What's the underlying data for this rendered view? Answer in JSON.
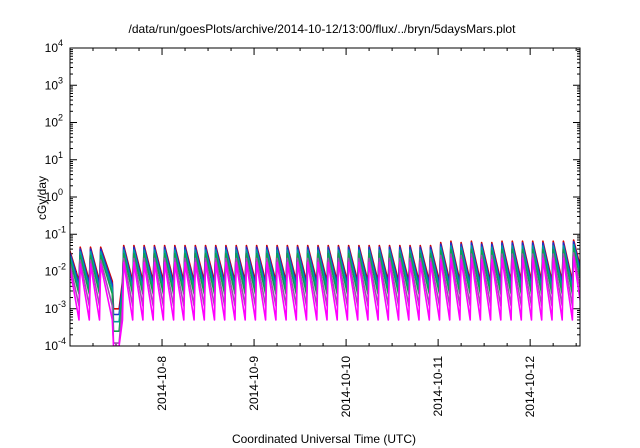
{
  "chart_data": {
    "type": "line",
    "title": "/data/run/goesPlots/archive/2014-10-12/13:00/flux/../bryn/5daysMars.plot",
    "xlabel": "Coordinated Universal Time (UTC)",
    "ylabel": "cGy/day",
    "y_scale": "log",
    "ylim": [
      0.0001,
      10000
    ],
    "xlim": [
      "2014-10-07T00:00",
      "2014-10-12T13:00"
    ],
    "x_ticks": [
      "2014-10-8",
      "2014-10-9",
      "2014-10-10",
      "2014-10-11",
      "2014-10-12"
    ],
    "y_ticks": [
      {
        "mant": "10",
        "exp": "-4"
      },
      {
        "mant": "10",
        "exp": "-3"
      },
      {
        "mant": "10",
        "exp": "-2"
      },
      {
        "mant": "10",
        "exp": "-1"
      },
      {
        "mant": "10",
        "exp": "0"
      },
      {
        "mant": "10",
        "exp": "1"
      },
      {
        "mant": "10",
        "exp": "2"
      },
      {
        "mant": "10",
        "exp": "3"
      },
      {
        "mant": "10",
        "exp": "4"
      }
    ],
    "grid": false,
    "legend": "none",
    "peak_times": [
      "2014-10-07T00:00",
      "2014-10-07T02:40",
      "2014-10-07T05:20",
      "2014-10-07T08:00",
      "2014-10-07T11:20",
      "2014-10-07T14:00",
      "2014-10-07T16:40",
      "2014-10-07T19:20",
      "2014-10-07T22:00",
      "2014-10-08T00:40",
      "2014-10-08T03:20",
      "2014-10-08T06:00",
      "2014-10-08T08:40",
      "2014-10-08T11:20",
      "2014-10-08T14:00",
      "2014-10-08T16:40",
      "2014-10-08T19:20",
      "2014-10-08T22:00",
      "2014-10-09T00:40",
      "2014-10-09T03:20",
      "2014-10-09T06:00",
      "2014-10-09T08:40",
      "2014-10-09T11:20",
      "2014-10-09T14:00",
      "2014-10-09T16:40",
      "2014-10-09T19:20",
      "2014-10-09T22:00",
      "2014-10-10T00:40",
      "2014-10-10T03:20",
      "2014-10-10T06:00",
      "2014-10-10T08:40",
      "2014-10-10T11:20",
      "2014-10-10T14:00",
      "2014-10-10T16:40",
      "2014-10-10T19:20",
      "2014-10-10T22:00",
      "2014-10-11T00:40",
      "2014-10-11T03:20",
      "2014-10-11T06:00",
      "2014-10-11T08:40",
      "2014-10-11T11:20",
      "2014-10-11T14:00",
      "2014-10-11T16:40",
      "2014-10-11T19:20",
      "2014-10-11T22:00",
      "2014-10-12T00:40",
      "2014-10-12T03:20",
      "2014-10-12T06:00",
      "2014-10-12T08:40",
      "2014-10-12T11:20"
    ],
    "peak_values_top_series": [
      0.035,
      0.045,
      0.045,
      0.045,
      0.04,
      0.05,
      0.05,
      0.05,
      0.05,
      0.05,
      0.05,
      0.05,
      0.05,
      0.05,
      0.05,
      0.05,
      0.05,
      0.05,
      0.05,
      0.05,
      0.05,
      0.05,
      0.05,
      0.05,
      0.05,
      0.05,
      0.05,
      0.05,
      0.05,
      0.05,
      0.05,
      0.05,
      0.05,
      0.05,
      0.05,
      0.05,
      0.06,
      0.065,
      0.06,
      0.065,
      0.06,
      0.06,
      0.065,
      0.065,
      0.065,
      0.065,
      0.065,
      0.065,
      0.065,
      0.07
    ],
    "series": [
      {
        "color": "#d40000",
        "peak_factor": 1.0,
        "trough": 0.0055,
        "gap_level": 0.001
      },
      {
        "color": "#1f2fd0",
        "peak_factor": 0.9,
        "trough": 0.0045,
        "gap_level": 0.0007
      },
      {
        "color": "#00a0a0",
        "peak_factor": 0.75,
        "trough": 0.0035,
        "gap_level": 0.00045
      },
      {
        "color": "#10a050",
        "peak_factor": 0.6,
        "trough": 0.0025,
        "gap_level": 0.00025
      },
      {
        "color": "#a050b0",
        "peak_factor": 0.45,
        "trough": 0.0012,
        "gap_level": 0.00012
      },
      {
        "color": "#ff00ff",
        "peak_factor": 0.35,
        "trough": 0.0005,
        "gap_level": 0.0001
      }
    ],
    "data_gap": {
      "start": "2014-10-07T11:20",
      "end": "2014-10-07T13:20"
    }
  }
}
